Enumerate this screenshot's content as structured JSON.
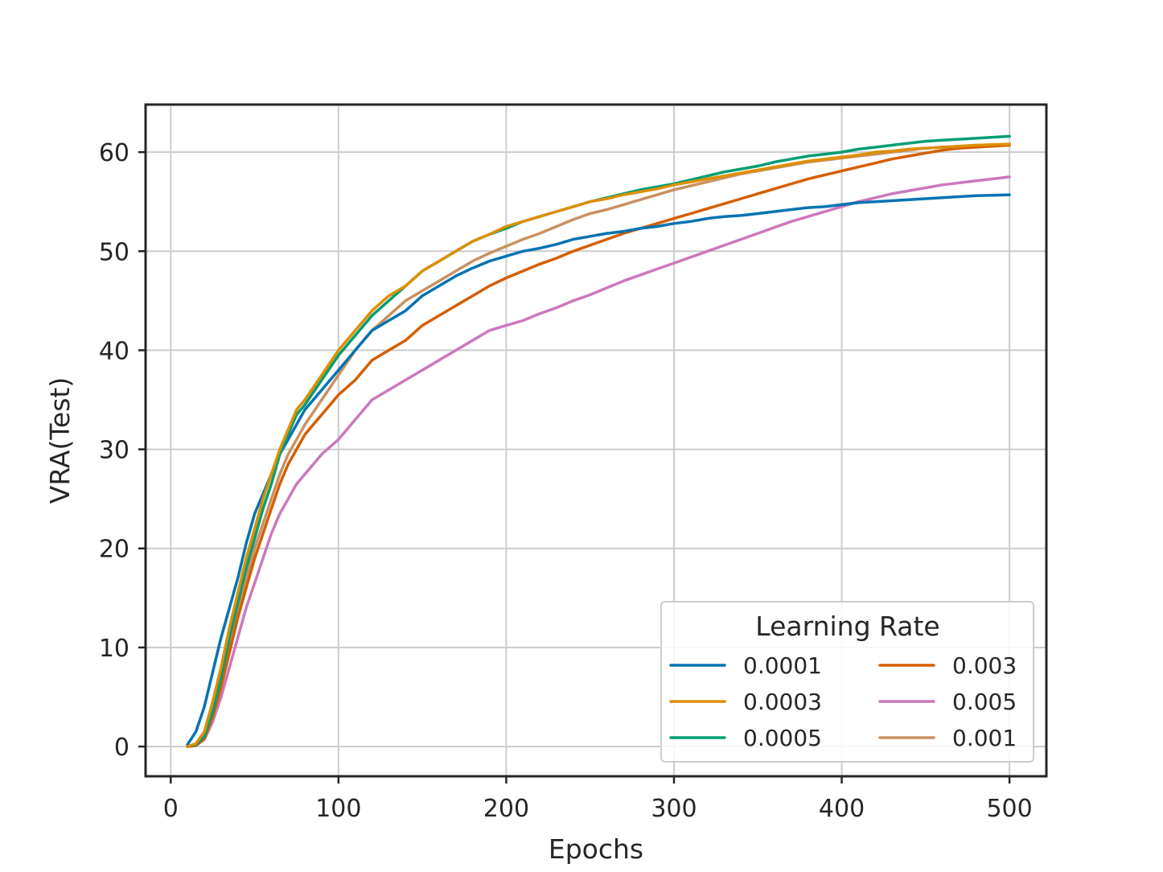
{
  "chart_data": {
    "type": "line",
    "title": "",
    "xlabel": "Epochs",
    "ylabel": "VRA(Test)",
    "xlim": [
      -15,
      522
    ],
    "ylim": [
      -3,
      64.8
    ],
    "xticks": [
      0,
      100,
      200,
      300,
      400,
      500
    ],
    "yticks": [
      0,
      10,
      20,
      30,
      40,
      50,
      60
    ],
    "grid": true,
    "legend": {
      "title": "Learning Rate",
      "placement": "lower-right",
      "columns": 2
    },
    "series": [
      {
        "name": "0.0001",
        "color": "#0173b2",
        "x": [
          10,
          15,
          20,
          25,
          30,
          35,
          40,
          45,
          50,
          55,
          60,
          65,
          70,
          75,
          80,
          90,
          100,
          110,
          120,
          130,
          140,
          150,
          160,
          170,
          180,
          190,
          200,
          210,
          220,
          230,
          240,
          250,
          260,
          270,
          280,
          290,
          300,
          310,
          320,
          330,
          340,
          350,
          360,
          370,
          380,
          390,
          400,
          410,
          420,
          430,
          440,
          450,
          460,
          470,
          480,
          490,
          500
        ],
        "y": [
          0.2,
          1.5,
          4,
          7.5,
          11,
          14,
          17,
          20.5,
          23.5,
          25.5,
          27.5,
          29.5,
          31,
          32.5,
          34,
          36,
          38,
          40,
          42,
          43,
          44,
          45.5,
          46.5,
          47.5,
          48.3,
          49,
          49.5,
          50,
          50.3,
          50.7,
          51.2,
          51.5,
          51.8,
          52,
          52.3,
          52.5,
          52.8,
          53,
          53.3,
          53.5,
          53.6,
          53.8,
          54,
          54.2,
          54.4,
          54.5,
          54.7,
          54.9,
          55,
          55.1,
          55.2,
          55.3,
          55.4,
          55.5,
          55.6,
          55.65,
          55.7
        ]
      },
      {
        "name": "0.0003",
        "color": "#de8f05",
        "x": [
          10,
          15,
          20,
          25,
          30,
          35,
          40,
          45,
          50,
          55,
          60,
          65,
          70,
          75,
          80,
          90,
          100,
          110,
          120,
          130,
          140,
          150,
          160,
          170,
          180,
          190,
          200,
          210,
          220,
          230,
          240,
          250,
          260,
          270,
          280,
          290,
          300,
          310,
          320,
          330,
          340,
          350,
          360,
          370,
          380,
          390,
          400,
          410,
          420,
          430,
          440,
          450,
          460,
          470,
          480,
          490,
          500
        ],
        "y": [
          0,
          0.3,
          1.5,
          4.5,
          8,
          12,
          15.5,
          19,
          22,
          25,
          27.5,
          30,
          32,
          34,
          35,
          37.5,
          40,
          42,
          44,
          45.5,
          46.5,
          48,
          49,
          50,
          51,
          51.7,
          52.5,
          53,
          53.5,
          54,
          54.5,
          55,
          55.3,
          55.7,
          56,
          56.3,
          56.7,
          57,
          57.3,
          57.6,
          57.9,
          58.2,
          58.5,
          58.8,
          59.1,
          59.3,
          59.5,
          59.7,
          60,
          60.1,
          60.3,
          60.4,
          60.5,
          60.6,
          60.7,
          60.75,
          60.8
        ]
      },
      {
        "name": "0.0005",
        "color": "#029e73",
        "x": [
          10,
          15,
          20,
          25,
          30,
          35,
          40,
          45,
          50,
          55,
          60,
          65,
          70,
          75,
          80,
          90,
          100,
          110,
          120,
          130,
          140,
          150,
          160,
          170,
          180,
          190,
          200,
          210,
          220,
          230,
          240,
          250,
          260,
          270,
          280,
          290,
          300,
          310,
          320,
          330,
          340,
          350,
          360,
          370,
          380,
          390,
          400,
          410,
          420,
          430,
          440,
          450,
          460,
          470,
          480,
          490,
          500
        ],
        "y": [
          0,
          0.2,
          1,
          3.5,
          7,
          11,
          14.5,
          18,
          21,
          24,
          26.5,
          29.5,
          31.5,
          33.5,
          34.5,
          37,
          39.5,
          41.5,
          43.5,
          45,
          46.5,
          48,
          49,
          50,
          51,
          51.7,
          52.3,
          53,
          53.5,
          54,
          54.5,
          55,
          55.4,
          55.8,
          56.2,
          56.5,
          56.8,
          57.2,
          57.6,
          58,
          58.3,
          58.6,
          59,
          59.3,
          59.6,
          59.8,
          60,
          60.3,
          60.5,
          60.7,
          60.9,
          61.1,
          61.2,
          61.3,
          61.4,
          61.5,
          61.6
        ]
      },
      {
        "name": "0.003",
        "color": "#d55e00",
        "x": [
          10,
          15,
          20,
          25,
          30,
          35,
          40,
          45,
          50,
          55,
          60,
          65,
          70,
          75,
          80,
          90,
          100,
          110,
          120,
          130,
          140,
          150,
          160,
          170,
          180,
          190,
          200,
          210,
          220,
          230,
          240,
          250,
          260,
          270,
          280,
          290,
          300,
          310,
          320,
          330,
          340,
          350,
          360,
          370,
          380,
          390,
          400,
          410,
          420,
          430,
          440,
          450,
          460,
          470,
          480,
          490,
          500
        ],
        "y": [
          0,
          0.1,
          0.8,
          3,
          6,
          9.5,
          13,
          16,
          19,
          21.5,
          24,
          26.5,
          28.5,
          30,
          31.5,
          33.5,
          35.5,
          37,
          39,
          40,
          41,
          42.5,
          43.5,
          44.5,
          45.5,
          46.5,
          47.3,
          48,
          48.7,
          49.3,
          50,
          50.6,
          51.2,
          51.8,
          52.3,
          52.8,
          53.3,
          53.8,
          54.3,
          54.8,
          55.3,
          55.8,
          56.3,
          56.8,
          57.3,
          57.7,
          58.1,
          58.5,
          58.9,
          59.3,
          59.6,
          59.9,
          60.2,
          60.4,
          60.5,
          60.6,
          60.7
        ]
      },
      {
        "name": "0.005",
        "color": "#cc78bc",
        "x": [
          10,
          15,
          20,
          25,
          30,
          35,
          40,
          45,
          50,
          55,
          60,
          65,
          70,
          75,
          80,
          90,
          100,
          110,
          120,
          130,
          140,
          150,
          160,
          170,
          180,
          190,
          200,
          210,
          220,
          230,
          240,
          250,
          260,
          270,
          280,
          290,
          300,
          310,
          320,
          330,
          340,
          350,
          360,
          370,
          380,
          390,
          400,
          410,
          420,
          430,
          440,
          450,
          460,
          470,
          480,
          490,
          500
        ],
        "y": [
          0,
          0.1,
          0.7,
          2.5,
          5,
          8,
          11,
          14,
          16.5,
          19,
          21.5,
          23.5,
          25,
          26.5,
          27.5,
          29.5,
          31,
          33,
          35,
          36,
          37,
          38,
          39,
          40,
          41,
          42,
          42.5,
          43,
          43.7,
          44.3,
          45,
          45.6,
          46.3,
          47,
          47.6,
          48.2,
          48.8,
          49.4,
          50,
          50.6,
          51.2,
          51.8,
          52.4,
          53,
          53.5,
          54,
          54.5,
          55,
          55.4,
          55.8,
          56.1,
          56.4,
          56.7,
          56.9,
          57.1,
          57.3,
          57.5
        ]
      },
      {
        "name": "0.001",
        "color": "#ca9161",
        "x": [
          10,
          15,
          20,
          25,
          30,
          35,
          40,
          45,
          50,
          55,
          60,
          65,
          70,
          75,
          80,
          90,
          100,
          110,
          120,
          130,
          140,
          150,
          160,
          170,
          180,
          190,
          200,
          210,
          220,
          230,
          240,
          250,
          260,
          270,
          280,
          290,
          300,
          310,
          320,
          330,
          340,
          350,
          360,
          370,
          380,
          390,
          400,
          410,
          420,
          430,
          440,
          450,
          460,
          470,
          480,
          490,
          500
        ],
        "y": [
          0,
          0.2,
          0.9,
          3.2,
          6.5,
          10,
          13.5,
          17,
          20,
          22.5,
          25,
          27.5,
          29.5,
          31,
          32.5,
          35,
          37.5,
          40,
          42,
          43.5,
          45,
          46,
          47,
          48,
          49,
          49.8,
          50.5,
          51.2,
          51.8,
          52.5,
          53.2,
          53.8,
          54.2,
          54.7,
          55.2,
          55.7,
          56.2,
          56.6,
          57,
          57.4,
          57.8,
          58.1,
          58.4,
          58.7,
          59,
          59.2,
          59.4,
          59.6,
          59.8,
          60,
          60.2,
          60.4,
          60.5,
          60.6,
          60.7,
          60.75,
          60.8
        ]
      }
    ]
  }
}
